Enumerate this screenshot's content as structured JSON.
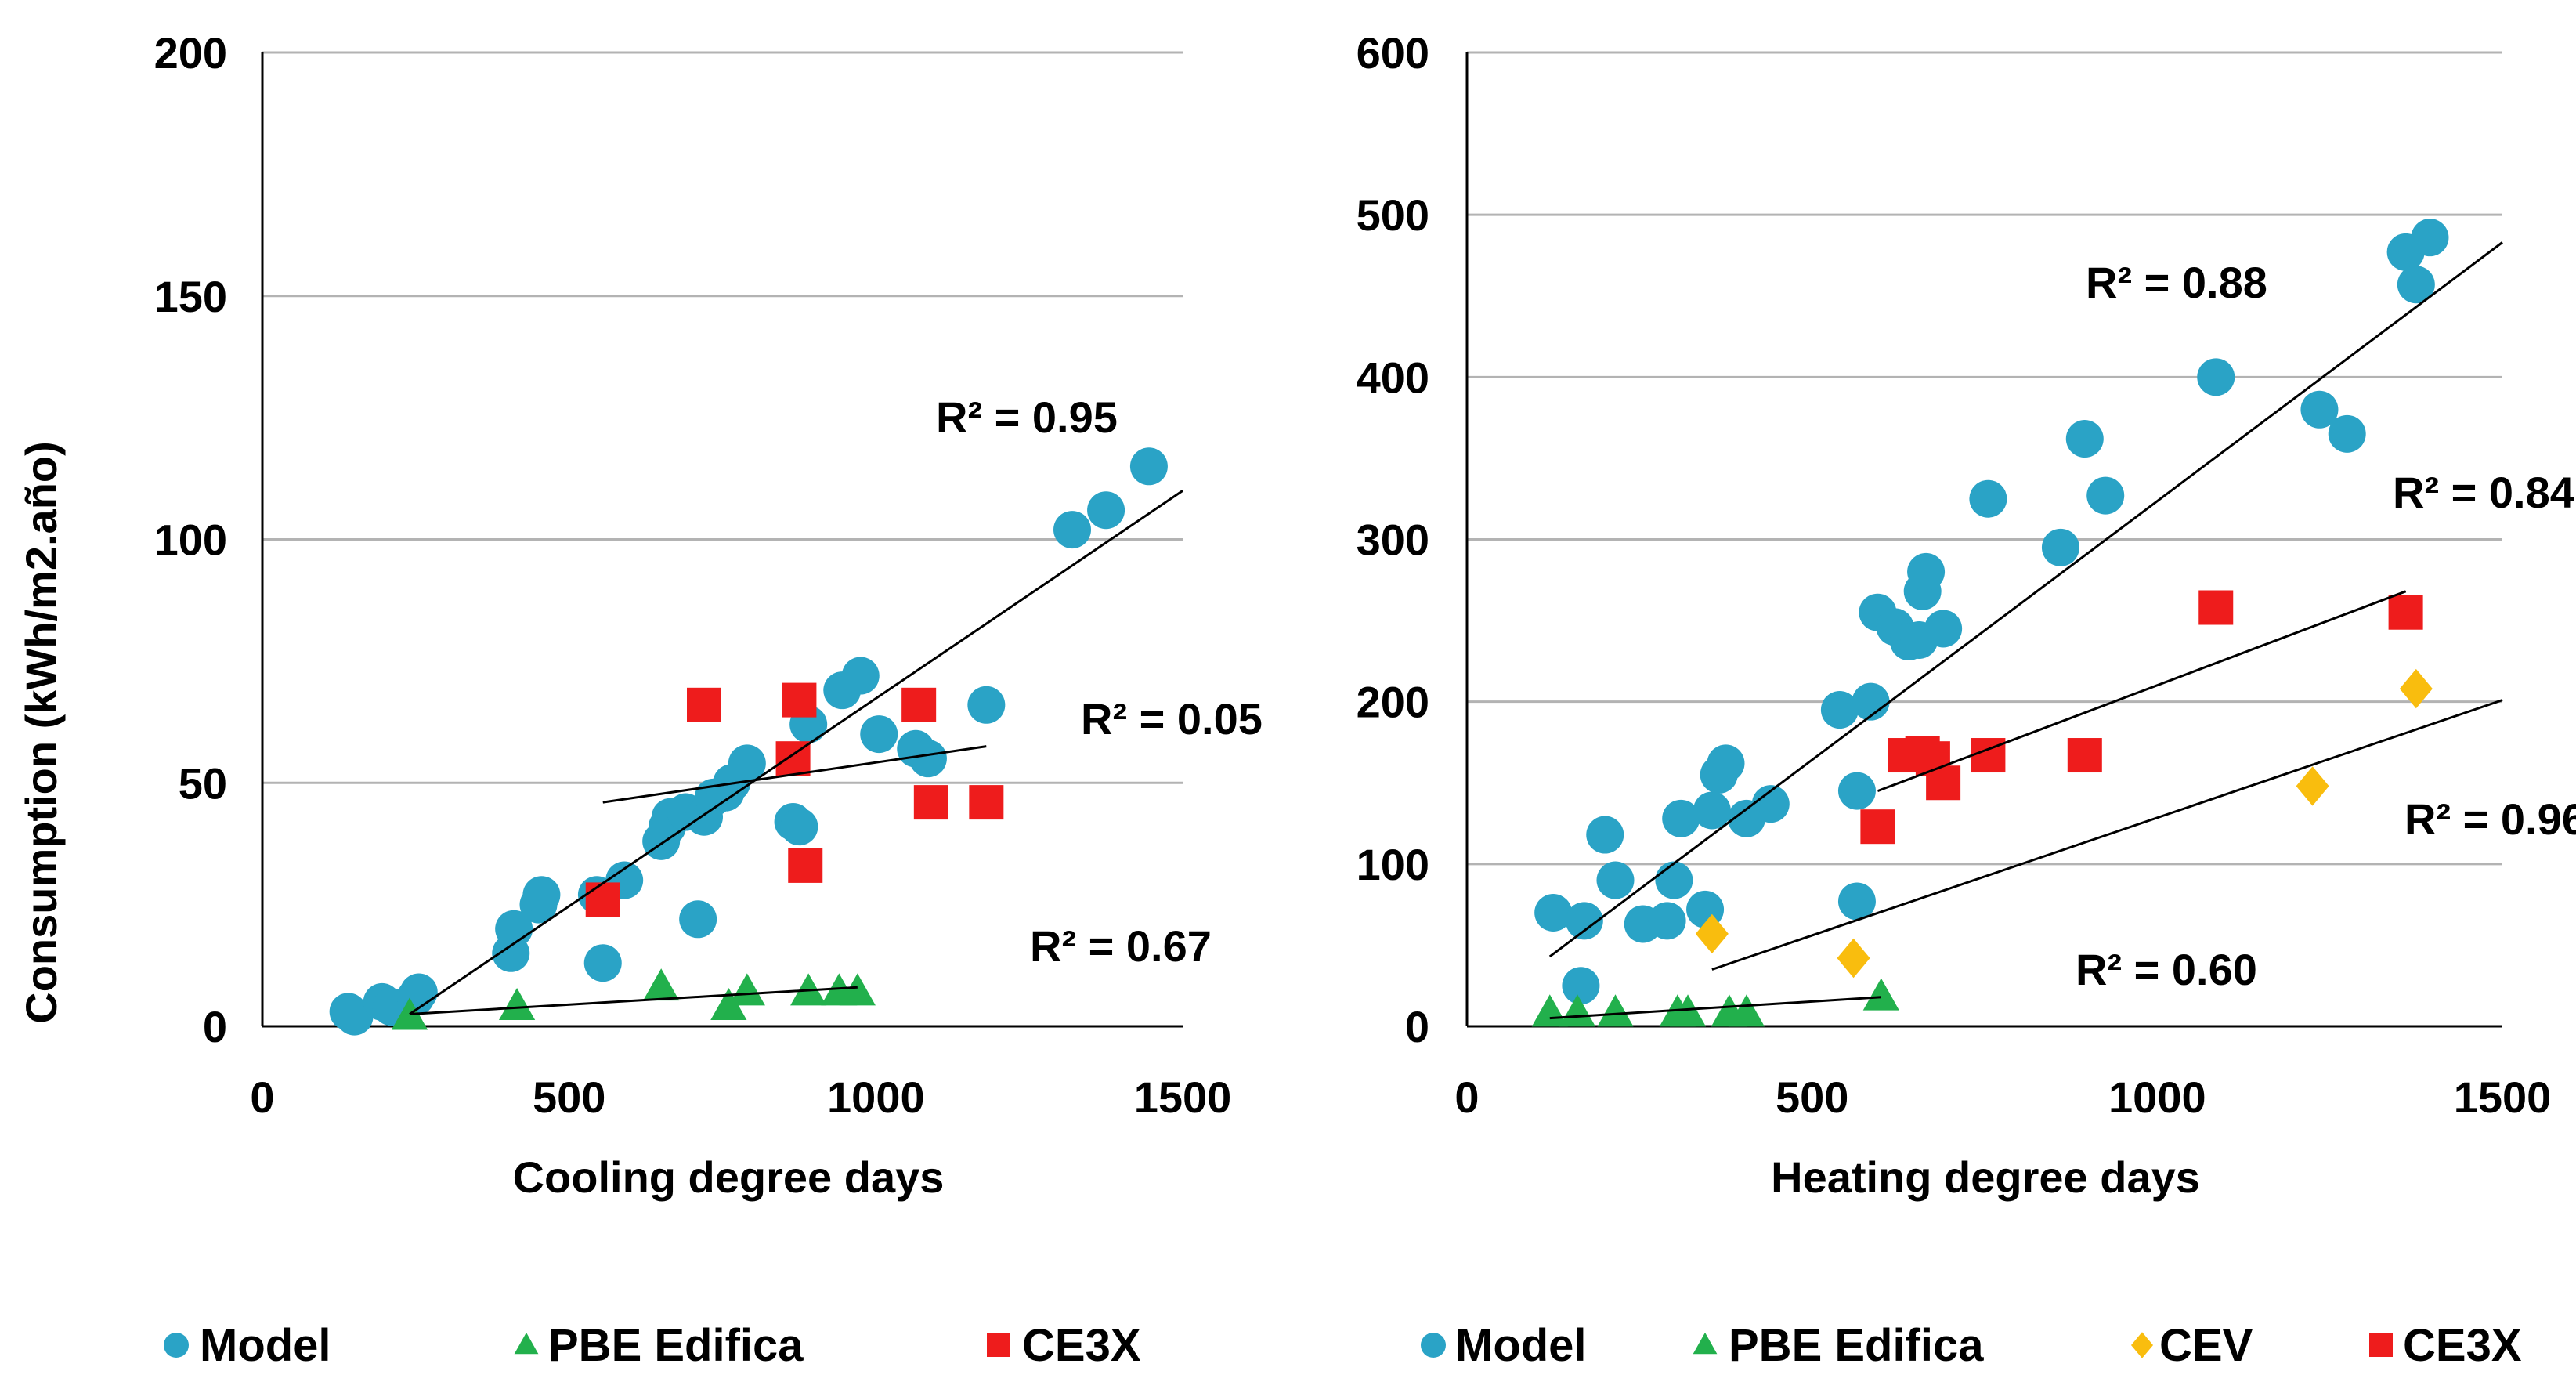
{
  "colors": {
    "model": "#2aa3c6",
    "pbe": "#22b04c",
    "cev": "#f9bd0e",
    "ce3x": "#ee1c1c",
    "grid": "#b3b3b3",
    "axis": "#000000",
    "trend": "#000000"
  },
  "chart_data": [
    {
      "type": "scatter",
      "xlabel": "Cooling degree days",
      "ylabel": "Consumption (kWh/m2.año)",
      "xlim": [
        0,
        1500
      ],
      "ylim": [
        0,
        200
      ],
      "xticks": [
        0,
        500,
        1000,
        1500
      ],
      "yticks": [
        0,
        50,
        100,
        150,
        200
      ],
      "grid": "horizontal",
      "legend_position": "bottom",
      "series": [
        {
          "name": "Model",
          "key": "model",
          "marker": "circle",
          "points": [
            [
              140,
              3
            ],
            [
              150,
              2
            ],
            [
              195,
              5
            ],
            [
              210,
              4
            ],
            [
              250,
              6
            ],
            [
              255,
              7
            ],
            [
              405,
              15
            ],
            [
              410,
              20
            ],
            [
              450,
              25
            ],
            [
              455,
              27
            ],
            [
              545,
              27
            ],
            [
              555,
              13
            ],
            [
              590,
              30
            ],
            [
              650,
              38
            ],
            [
              660,
              41
            ],
            [
              665,
              43
            ],
            [
              690,
              44
            ],
            [
              710,
              22
            ],
            [
              720,
              43
            ],
            [
              735,
              47
            ],
            [
              755,
              48
            ],
            [
              765,
              50
            ],
            [
              790,
              54
            ],
            [
              865,
              42
            ],
            [
              875,
              41
            ],
            [
              890,
              62
            ],
            [
              945,
              69
            ],
            [
              975,
              72
            ],
            [
              1005,
              60
            ],
            [
              1065,
              57
            ],
            [
              1085,
              55
            ],
            [
              1180,
              66
            ],
            [
              1320,
              102
            ],
            [
              1375,
              106
            ],
            [
              1445,
              115
            ]
          ]
        },
        {
          "name": "PBE Edifica",
          "key": "pbe",
          "marker": "triangle",
          "points": [
            [
              240,
              2
            ],
            [
              415,
              4
            ],
            [
              650,
              8
            ],
            [
              760,
              4
            ],
            [
              790,
              7
            ],
            [
              890,
              7
            ],
            [
              940,
              7
            ],
            [
              970,
              7
            ]
          ]
        },
        {
          "name": "CE3X",
          "key": "ce3x",
          "marker": "square",
          "points": [
            [
              555,
              26
            ],
            [
              720,
              66
            ],
            [
              865,
              55
            ],
            [
              875,
              67
            ],
            [
              885,
              33
            ],
            [
              1070,
              66
            ],
            [
              1090,
              46
            ],
            [
              1180,
              46
            ]
          ]
        }
      ],
      "trendlines": [
        {
          "series": "Model",
          "label": "R² = 0.95",
          "x": [
            240,
            1500
          ],
          "y": [
            2.5,
            110
          ]
        },
        {
          "series": "CE3X",
          "label": "R² = 0.05",
          "x": [
            555,
            1180
          ],
          "y": [
            46,
            57.5
          ]
        },
        {
          "series": "PBE Edifica",
          "label": "R² = 0.67",
          "x": [
            240,
            970
          ],
          "y": [
            2.5,
            8
          ]
        }
      ]
    },
    {
      "type": "scatter",
      "xlabel": "Heating degree days",
      "xlim": [
        0,
        1500
      ],
      "ylim": [
        0,
        600
      ],
      "xticks": [
        0,
        500,
        1000,
        1500
      ],
      "yticks": [
        0,
        100,
        200,
        300,
        400,
        500,
        600
      ],
      "grid": "horizontal",
      "legend_position": "bottom",
      "series": [
        {
          "name": "Model",
          "key": "model",
          "marker": "circle",
          "points": [
            [
              125,
              70
            ],
            [
              165,
              25
            ],
            [
              170,
              65
            ],
            [
              200,
              118
            ],
            [
              215,
              90
            ],
            [
              255,
              63
            ],
            [
              290,
              65
            ],
            [
              300,
              90
            ],
            [
              310,
              128
            ],
            [
              345,
              72
            ],
            [
              355,
              133
            ],
            [
              365,
              155
            ],
            [
              375,
              162
            ],
            [
              405,
              128
            ],
            [
              440,
              137
            ],
            [
              540,
              195
            ],
            [
              565,
              145
            ],
            [
              565,
              77
            ],
            [
              585,
              200
            ],
            [
              595,
              255
            ],
            [
              620,
              246
            ],
            [
              640,
              237
            ],
            [
              655,
              238
            ],
            [
              660,
              268
            ],
            [
              665,
              280
            ],
            [
              690,
              245
            ],
            [
              755,
              325
            ],
            [
              860,
              295
            ],
            [
              895,
              362
            ],
            [
              925,
              327
            ],
            [
              1085,
              400
            ],
            [
              1235,
              380
            ],
            [
              1275,
              365
            ],
            [
              1360,
              477
            ],
            [
              1375,
              457
            ],
            [
              1395,
              486
            ]
          ]
        },
        {
          "name": "PBE Edifica",
          "key": "pbe",
          "marker": "triangle",
          "points": [
            [
              120,
              8
            ],
            [
              160,
              8
            ],
            [
              215,
              8
            ],
            [
              305,
              8
            ],
            [
              320,
              8
            ],
            [
              380,
              8
            ],
            [
              405,
              8
            ],
            [
              600,
              18
            ]
          ]
        },
        {
          "name": "CEV",
          "key": "cev",
          "marker": "diamond",
          "points": [
            [
              355,
              57
            ],
            [
              560,
              42
            ],
            [
              1225,
              148
            ],
            [
              1375,
              208
            ]
          ]
        },
        {
          "name": "CE3X",
          "key": "ce3x",
          "marker": "square",
          "points": [
            [
              595,
              123
            ],
            [
              635,
              167
            ],
            [
              660,
              168
            ],
            [
              675,
              165
            ],
            [
              690,
              150
            ],
            [
              755,
              167
            ],
            [
              895,
              167
            ],
            [
              1085,
              258
            ],
            [
              1360,
              255
            ]
          ]
        }
      ],
      "trendlines": [
        {
          "series": "Model",
          "label": "R² = 0.88",
          "x": [
            120,
            1500
          ],
          "y": [
            43,
            483
          ]
        },
        {
          "series": "CE3X",
          "label": "R² = 0.84",
          "x": [
            595,
            1360
          ],
          "y": [
            145,
            268
          ]
        },
        {
          "series": "CEV",
          "label": "R² = 0.96",
          "x": [
            355,
            1500
          ],
          "y": [
            35,
            201
          ]
        },
        {
          "series": "PBE Edifica",
          "label": "R² = 0.60",
          "x": [
            120,
            600
          ],
          "y": [
            5,
            18
          ]
        }
      ]
    }
  ],
  "legends": [
    {
      "items": [
        "Model",
        "PBE Edifica",
        "CE3X"
      ]
    },
    {
      "items": [
        "Model",
        "PBE Edifica",
        "CEV",
        "CE3X"
      ]
    }
  ]
}
